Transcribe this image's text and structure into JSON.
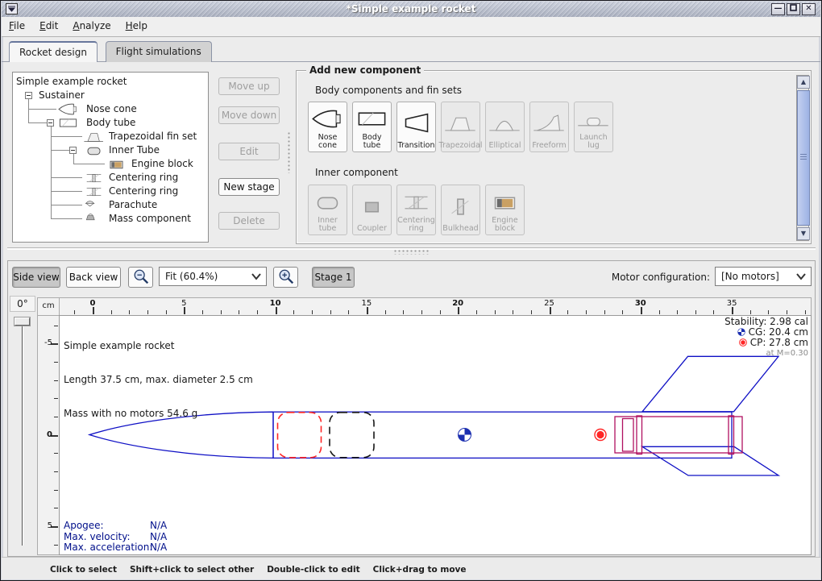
{
  "window": {
    "title": "*Simple example rocket"
  },
  "menu": {
    "items": [
      {
        "label": "File"
      },
      {
        "label": "Edit"
      },
      {
        "label": "Analyze"
      },
      {
        "label": "Help"
      }
    ]
  },
  "tabs": {
    "items": [
      {
        "label": "Rocket design",
        "selected": true
      },
      {
        "label": "Flight simulations",
        "selected": false
      }
    ]
  },
  "tree": {
    "rows": [
      {
        "label": "Simple example rocket",
        "depth": 0,
        "toggle": null,
        "icon": null
      },
      {
        "label": "Sustainer",
        "depth": 1,
        "toggle": "-",
        "icon": null
      },
      {
        "label": "Nose cone",
        "depth": 2,
        "toggle": null,
        "icon": "nose-cone"
      },
      {
        "label": "Body tube",
        "depth": 2,
        "toggle": "-",
        "icon": "body-tube"
      },
      {
        "label": "Trapezoidal fin set",
        "depth": 3,
        "toggle": null,
        "icon": "fin-trap"
      },
      {
        "label": "Inner Tube",
        "depth": 3,
        "toggle": "-",
        "icon": "inner-tube"
      },
      {
        "label": "Engine block",
        "depth": 4,
        "toggle": null,
        "icon": "engine-block"
      },
      {
        "label": "Centering ring",
        "depth": 3,
        "toggle": null,
        "icon": "centering-ring"
      },
      {
        "label": "Centering ring",
        "depth": 3,
        "toggle": null,
        "icon": "centering-ring"
      },
      {
        "label": "Parachute",
        "depth": 3,
        "toggle": null,
        "icon": "parachute"
      },
      {
        "label": "Mass component",
        "depth": 3,
        "toggle": null,
        "icon": "mass"
      }
    ]
  },
  "stage_buttons": [
    {
      "label": "Move up",
      "enabled": false
    },
    {
      "label": "Move down",
      "enabled": false
    },
    {
      "label": "Edit",
      "enabled": false
    },
    {
      "label": "New stage",
      "enabled": true
    },
    {
      "label": "Delete",
      "enabled": false
    }
  ],
  "add_component": {
    "title": "Add new component",
    "sections": [
      {
        "label": "Body components and fin sets",
        "buttons": [
          {
            "label": "Nose cone",
            "icon": "nose-cone",
            "enabled": true
          },
          {
            "label": "Body tube",
            "icon": "body-tube",
            "enabled": true
          },
          {
            "label": "Transition",
            "icon": "transition",
            "enabled": true
          },
          {
            "label": "Trapezoidal",
            "icon": "fin-trap",
            "enabled": false
          },
          {
            "label": "Elliptical",
            "icon": "fin-ell",
            "enabled": false
          },
          {
            "label": "Freeform",
            "icon": "fin-free",
            "enabled": false
          },
          {
            "label": "Launch lug",
            "icon": "launch-lug",
            "enabled": false
          }
        ]
      },
      {
        "label": "Inner component",
        "buttons": [
          {
            "label": "Inner tube",
            "icon": "inner-tube",
            "enabled": false
          },
          {
            "label": "Coupler",
            "icon": "coupler",
            "enabled": false
          },
          {
            "label": "Centering ring",
            "icon": "centering-ring",
            "enabled": false
          },
          {
            "label": "Bulkhead",
            "icon": "bulkhead",
            "enabled": false
          },
          {
            "label": "Engine block",
            "icon": "engine-block",
            "enabled": false
          }
        ]
      }
    ]
  },
  "view_toolbar": {
    "side_view": "Side view",
    "back_view": "Back view",
    "zoom_value": "Fit (60.4%)",
    "stage_button": "Stage 1",
    "motor_label": "Motor configuration:",
    "motor_value": "[No motors]",
    "rotation_value": "0°"
  },
  "rulers": {
    "unit": "cm",
    "h_labels": [
      0,
      5,
      10,
      15,
      20,
      25,
      30,
      35
    ],
    "v_labels": [
      -5,
      0,
      5
    ]
  },
  "design_info": {
    "lines": [
      "Simple example rocket",
      "Length 37.5 cm, max. diameter 2.5 cm",
      "Mass with no motors 54.6 g"
    ]
  },
  "stability": {
    "stability": "Stability: 2.98 cal",
    "cg": "CG: 20.4 cm",
    "cp": "CP: 27.8 cm",
    "mach": "at M=0.30"
  },
  "flight_info": {
    "rows": [
      {
        "label": "Apogee:",
        "value": "N/A"
      },
      {
        "label": "Max. velocity:",
        "value": "N/A"
      },
      {
        "label": "Max. acceleration:",
        "value": "N/A"
      }
    ]
  },
  "status_hints": [
    "Click to select",
    "Shift+click to select other",
    "Double-click to edit",
    "Click+drag to move"
  ],
  "colors": {
    "drawing_blue": "#0f10c5",
    "inner_magenta": "#b01060",
    "cp_red": "#ff2626",
    "flight_navy": "#000f8a",
    "scroll_thumb": "#a9bdec"
  }
}
